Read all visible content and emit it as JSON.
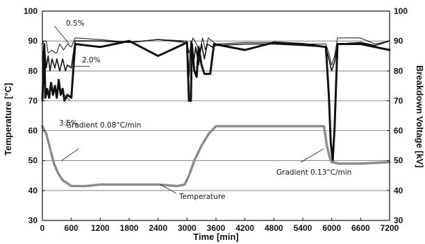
{
  "chart_data": {
    "type": "line",
    "title": "",
    "xlabel": "Time [min]",
    "ylabel_left": "Temperature [°C]",
    "ylabel_right": "Breakdown Voltage [kV]",
    "xlim": [
      0,
      7200
    ],
    "ylim_left": [
      30,
      100
    ],
    "ylim_right": [
      30,
      100
    ],
    "x_ticks": [
      0,
      600,
      1200,
      1800,
      2400,
      3000,
      3600,
      4200,
      4800,
      5400,
      6000,
      6600,
      7200
    ],
    "y_ticks": [
      30,
      40,
      50,
      60,
      70,
      80,
      90,
      100
    ],
    "grid": "horizontal",
    "series": [
      {
        "name": "0.5%",
        "axis": "right",
        "color": "#111111",
        "points": [
          [
            0,
            89
          ],
          [
            30,
            90
          ],
          [
            80,
            90
          ],
          [
            120,
            86
          ],
          [
            200,
            87
          ],
          [
            260,
            86
          ],
          [
            300,
            86
          ],
          [
            360,
            89
          ],
          [
            440,
            87
          ],
          [
            520,
            89
          ],
          [
            600,
            88
          ],
          [
            680,
            91
          ],
          [
            1200,
            90.5
          ],
          [
            1800,
            89.5
          ],
          [
            2400,
            90.5
          ],
          [
            3000,
            90
          ],
          [
            3040,
            86
          ],
          [
            3080,
            88
          ],
          [
            3120,
            91
          ],
          [
            3200,
            89
          ],
          [
            3260,
            86
          ],
          [
            3320,
            91
          ],
          [
            3380,
            87
          ],
          [
            3440,
            91
          ],
          [
            3520,
            90
          ],
          [
            3600,
            89
          ],
          [
            4200,
            89.5
          ],
          [
            4800,
            89.5
          ],
          [
            5400,
            89
          ],
          [
            5880,
            89
          ],
          [
            5940,
            86
          ],
          [
            6000,
            82
          ],
          [
            6060,
            85
          ],
          [
            6120,
            91
          ],
          [
            6600,
            91
          ],
          [
            6900,
            89
          ],
          [
            7200,
            90
          ]
        ]
      },
      {
        "name": "2.0%",
        "axis": "right",
        "color": "#111111",
        "points": [
          [
            0,
            84
          ],
          [
            40,
            89
          ],
          [
            80,
            81
          ],
          [
            120,
            85
          ],
          [
            160,
            80
          ],
          [
            200,
            84
          ],
          [
            260,
            81
          ],
          [
            300,
            84
          ],
          [
            360,
            80
          ],
          [
            420,
            84
          ],
          [
            480,
            80
          ],
          [
            520,
            82
          ],
          [
            600,
            81
          ],
          [
            680,
            90
          ],
          [
            1200,
            90
          ],
          [
            1800,
            89.5
          ],
          [
            2400,
            90.5
          ],
          [
            3000,
            89.5
          ],
          [
            3040,
            78
          ],
          [
            3080,
            90
          ],
          [
            3130,
            82
          ],
          [
            3180,
            88
          ],
          [
            3240,
            82
          ],
          [
            3300,
            89
          ],
          [
            3360,
            84
          ],
          [
            3420,
            89
          ],
          [
            3520,
            88
          ],
          [
            3600,
            88.5
          ],
          [
            4200,
            89
          ],
          [
            4800,
            89
          ],
          [
            5400,
            88.5
          ],
          [
            5880,
            88
          ],
          [
            5940,
            84
          ],
          [
            6000,
            80
          ],
          [
            6060,
            83
          ],
          [
            6120,
            89
          ],
          [
            6600,
            89.5
          ],
          [
            6900,
            88.5
          ],
          [
            7200,
            90
          ]
        ]
      },
      {
        "name": "3.5%",
        "axis": "right",
        "color": "#111111",
        "points": [
          [
            0,
            70
          ],
          [
            40,
            89
          ],
          [
            60,
            71
          ],
          [
            100,
            74
          ],
          [
            140,
            71
          ],
          [
            180,
            76
          ],
          [
            220,
            72
          ],
          [
            260,
            75
          ],
          [
            300,
            71
          ],
          [
            340,
            77
          ],
          [
            380,
            72
          ],
          [
            420,
            74
          ],
          [
            460,
            70
          ],
          [
            520,
            72
          ],
          [
            600,
            71
          ],
          [
            680,
            89
          ],
          [
            1200,
            88
          ],
          [
            1800,
            90
          ],
          [
            2400,
            85
          ],
          [
            3000,
            89.5
          ],
          [
            3040,
            70
          ],
          [
            3080,
            70
          ],
          [
            3100,
            89
          ],
          [
            3150,
            80
          ],
          [
            3200,
            78
          ],
          [
            3240,
            88
          ],
          [
            3300,
            82
          ],
          [
            3360,
            79
          ],
          [
            3480,
            79
          ],
          [
            3560,
            89
          ],
          [
            4200,
            87
          ],
          [
            4800,
            89.5
          ],
          [
            5400,
            89
          ],
          [
            5880,
            88
          ],
          [
            5940,
            72
          ],
          [
            5980,
            56
          ],
          [
            6020,
            50
          ],
          [
            6060,
            61
          ],
          [
            6120,
            89
          ],
          [
            6600,
            89
          ],
          [
            7200,
            87
          ]
        ]
      },
      {
        "name": "Temperature",
        "axis": "left",
        "color": "#8a8a8a",
        "points": [
          [
            0,
            61.5
          ],
          [
            80,
            59
          ],
          [
            160,
            54
          ],
          [
            240,
            49
          ],
          [
            320,
            46
          ],
          [
            420,
            43.5
          ],
          [
            600,
            41.5
          ],
          [
            900,
            41.5
          ],
          [
            1200,
            42
          ],
          [
            1800,
            42
          ],
          [
            2400,
            42
          ],
          [
            2800,
            41.5
          ],
          [
            2950,
            42
          ],
          [
            3040,
            45
          ],
          [
            3150,
            50
          ],
          [
            3300,
            55
          ],
          [
            3450,
            59
          ],
          [
            3600,
            61.5
          ],
          [
            4200,
            61.5
          ],
          [
            4800,
            61.5
          ],
          [
            5400,
            61.5
          ],
          [
            5840,
            61.5
          ],
          [
            5900,
            55
          ],
          [
            5960,
            51
          ],
          [
            6000,
            49.5
          ],
          [
            6150,
            49
          ],
          [
            6600,
            49
          ],
          [
            7200,
            49.5
          ]
        ]
      }
    ],
    "annotations": [
      {
        "text": "0.5%"
      },
      {
        "text": "2.0%"
      },
      {
        "text": "3.5%"
      },
      {
        "text": "Gradient 0.08°C/min"
      },
      {
        "text": "Temperature"
      },
      {
        "text": "Gradient 0.13°C/min"
      }
    ]
  }
}
